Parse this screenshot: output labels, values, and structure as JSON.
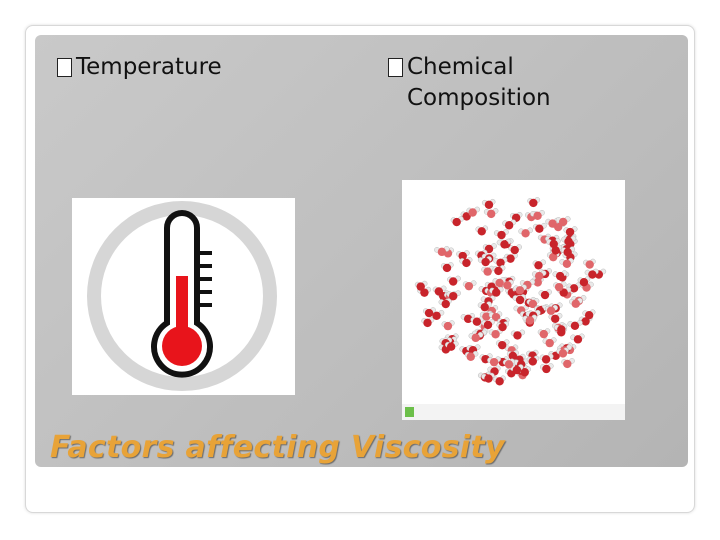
{
  "slide": {
    "bullets": [
      "Temperature",
      "Chemical Composition"
    ],
    "title": "Factors affecting Viscosity"
  }
}
